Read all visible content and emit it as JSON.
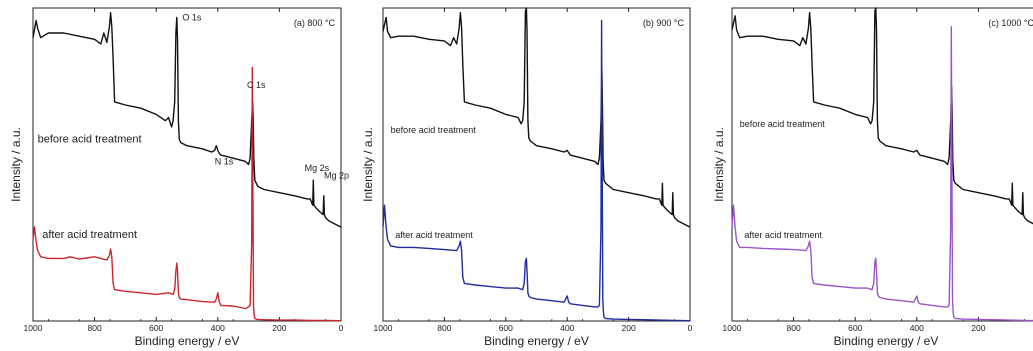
{
  "chart_data": [
    {
      "type": "line",
      "panel_label": "(a) 800 °C",
      "xlabel": "Binding energy / eV",
      "ylabel": "Intensity / a.u.",
      "xlim": [
        1000,
        0
      ],
      "x_reversed": true,
      "xticks": [
        1000,
        800,
        600,
        400,
        200,
        0
      ],
      "grid": false,
      "series": [
        {
          "name": "before acid treatment",
          "color": "#111111",
          "x": [
            1000,
            990,
            985,
            975,
            950,
            900,
            850,
            800,
            780,
            770,
            760,
            752,
            748,
            744,
            740,
            735,
            700,
            650,
            600,
            570,
            560,
            550,
            545,
            540,
            536,
            533,
            531,
            528,
            525,
            520,
            500,
            450,
            420,
            410,
            405,
            400,
            395,
            390,
            350,
            310,
            300,
            295,
            290,
            287,
            285,
            283,
            280,
            275,
            270,
            250,
            200,
            150,
            110,
            100,
            92,
            90,
            88,
            80,
            70,
            58,
            56,
            54,
            50,
            40,
            20,
            0
          ],
          "y": [
            0.905,
            0.96,
            0.935,
            0.905,
            0.92,
            0.92,
            0.91,
            0.9,
            0.885,
            0.92,
            0.89,
            0.94,
            0.985,
            0.94,
            0.84,
            0.7,
            0.69,
            0.68,
            0.66,
            0.64,
            0.65,
            0.62,
            0.64,
            0.7,
            0.92,
            0.97,
            0.9,
            0.64,
            0.58,
            0.57,
            0.56,
            0.55,
            0.54,
            0.545,
            0.56,
            0.545,
            0.535,
            0.53,
            0.52,
            0.51,
            0.5,
            0.52,
            0.64,
            0.7,
            0.65,
            0.52,
            0.45,
            0.44,
            0.43,
            0.42,
            0.41,
            0.4,
            0.39,
            0.39,
            0.37,
            0.45,
            0.37,
            0.36,
            0.35,
            0.34,
            0.4,
            0.34,
            0.33,
            0.32,
            0.31,
            0.3
          ]
        },
        {
          "name": "after acid treatment",
          "color": "#c8282d",
          "x": [
            1000,
            995,
            990,
            985,
            975,
            950,
            900,
            880,
            850,
            800,
            780,
            760,
            752,
            748,
            744,
            740,
            735,
            700,
            650,
            600,
            560,
            545,
            540,
            536,
            533,
            531,
            528,
            525,
            520,
            500,
            450,
            410,
            405,
            400,
            395,
            390,
            350,
            310,
            300,
            295,
            290,
            288,
            286,
            284,
            282,
            280,
            275,
            270,
            250,
            200,
            150,
            100,
            50,
            0
          ],
          "y": [
            0.26,
            0.3,
            0.255,
            0.225,
            0.205,
            0.2,
            0.2,
            0.205,
            0.198,
            0.205,
            0.2,
            0.195,
            0.21,
            0.23,
            0.205,
            0.12,
            0.1,
            0.095,
            0.09,
            0.085,
            0.09,
            0.085,
            0.1,
            0.16,
            0.185,
            0.16,
            0.09,
            0.075,
            0.07,
            0.068,
            0.062,
            0.06,
            0.07,
            0.09,
            0.06,
            0.05,
            0.048,
            0.04,
            0.045,
            0.05,
            0.25,
            0.81,
            0.42,
            0.05,
            0.02,
            0.008,
            0.006,
            0.005,
            0.004,
            0.003,
            0.003,
            0.002,
            0.002,
            0.001
          ]
        }
      ],
      "annotations": [
        {
          "text": "O 1s",
          "x": 515,
          "y": 0.96
        },
        {
          "text": "C 1s",
          "x": 305,
          "y": 0.745
        },
        {
          "text": "N 1s",
          "x": 410,
          "y": 0.5
        },
        {
          "text": "Mg 2s",
          "x": 118,
          "y": 0.48
        },
        {
          "text": "Mg 2p",
          "x": 55,
          "y": 0.455
        },
        {
          "text": "before acid treatment",
          "x": 985,
          "y": 0.57
        },
        {
          "text": "after acid treatment",
          "x": 970,
          "y": 0.265
        }
      ]
    },
    {
      "type": "line",
      "panel_label": "(b) 900 °C",
      "xlabel": "Binding energy / eV",
      "ylabel": "Intensity / a.u.",
      "xlim": [
        1000,
        0
      ],
      "x_reversed": true,
      "xticks": [
        1000,
        800,
        600,
        400,
        200,
        0
      ],
      "grid": false,
      "series": [
        {
          "name": "before acid treatment",
          "color": "#111111",
          "x": [
            1000,
            990,
            985,
            975,
            950,
            900,
            850,
            800,
            780,
            770,
            760,
            752,
            748,
            744,
            740,
            735,
            700,
            650,
            600,
            560,
            550,
            545,
            540,
            536,
            533,
            531,
            528,
            525,
            520,
            500,
            450,
            410,
            400,
            390,
            350,
            310,
            300,
            295,
            290,
            287,
            285,
            283,
            280,
            275,
            250,
            200,
            150,
            110,
            100,
            92,
            90,
            88,
            80,
            70,
            58,
            56,
            54,
            50,
            40,
            20,
            0
          ],
          "y": [
            0.925,
            0.97,
            0.925,
            0.905,
            0.91,
            0.91,
            0.9,
            0.895,
            0.88,
            0.905,
            0.885,
            0.935,
            0.985,
            0.935,
            0.82,
            0.7,
            0.69,
            0.68,
            0.66,
            0.65,
            0.63,
            0.64,
            0.7,
            0.99,
            1.0,
            0.93,
            0.64,
            0.585,
            0.575,
            0.56,
            0.55,
            0.54,
            0.545,
            0.53,
            0.52,
            0.51,
            0.5,
            0.52,
            0.64,
            0.8,
            0.68,
            0.51,
            0.45,
            0.44,
            0.42,
            0.41,
            0.4,
            0.39,
            0.39,
            0.37,
            0.44,
            0.37,
            0.36,
            0.35,
            0.34,
            0.41,
            0.34,
            0.33,
            0.32,
            0.31,
            0.3
          ]
        },
        {
          "name": "after acid treatment",
          "color": "#1f2d9e",
          "x": [
            1000,
            995,
            990,
            985,
            975,
            950,
            900,
            850,
            800,
            760,
            752,
            748,
            744,
            740,
            735,
            700,
            650,
            600,
            560,
            545,
            540,
            536,
            533,
            531,
            528,
            525,
            520,
            500,
            450,
            410,
            400,
            395,
            390,
            350,
            310,
            300,
            295,
            290,
            288,
            286,
            284,
            282,
            280,
            275,
            250,
            200,
            150,
            100,
            50,
            0
          ],
          "y": [
            0.3,
            0.37,
            0.3,
            0.26,
            0.24,
            0.235,
            0.235,
            0.232,
            0.228,
            0.225,
            0.24,
            0.255,
            0.225,
            0.14,
            0.12,
            0.115,
            0.11,
            0.105,
            0.105,
            0.1,
            0.12,
            0.19,
            0.2,
            0.16,
            0.09,
            0.08,
            0.075,
            0.07,
            0.065,
            0.06,
            0.08,
            0.06,
            0.055,
            0.05,
            0.045,
            0.045,
            0.05,
            0.3,
            0.96,
            0.5,
            0.07,
            0.03,
            0.012,
            0.008,
            0.006,
            0.005,
            0.004,
            0.003,
            0.002,
            0.001
          ]
        }
      ],
      "annotations": [
        {
          "text": "before acid treatment",
          "x": 975,
          "y": 0.6
        },
        {
          "text": "after acid treatment",
          "x": 960,
          "y": 0.265
        }
      ]
    },
    {
      "type": "line",
      "panel_label": "(c) 1000 °C",
      "xlabel": "Binding energy / eV",
      "ylabel": "Intensity / a.u.",
      "xlim": [
        1000,
        0
      ],
      "x_reversed": true,
      "xticks": [
        1000,
        800,
        600,
        400,
        200
      ],
      "grid": false,
      "series": [
        {
          "name": "before acid treatment",
          "color": "#111111",
          "x": [
            1000,
            990,
            985,
            975,
            950,
            900,
            850,
            800,
            780,
            770,
            760,
            752,
            748,
            744,
            740,
            735,
            700,
            650,
            600,
            560,
            550,
            545,
            540,
            536,
            533,
            531,
            528,
            525,
            520,
            500,
            450,
            410,
            400,
            390,
            350,
            310,
            300,
            295,
            290,
            287,
            285,
            283,
            280,
            275,
            250,
            200,
            150,
            110,
            100,
            92,
            90,
            88,
            80,
            70,
            58,
            56,
            54,
            50,
            40,
            20,
            0
          ],
          "y": [
            0.93,
            0.975,
            0.93,
            0.905,
            0.91,
            0.91,
            0.9,
            0.895,
            0.88,
            0.905,
            0.885,
            0.935,
            0.985,
            0.935,
            0.82,
            0.7,
            0.69,
            0.68,
            0.66,
            0.65,
            0.63,
            0.64,
            0.7,
            0.99,
            1.0,
            0.93,
            0.64,
            0.585,
            0.575,
            0.56,
            0.55,
            0.54,
            0.545,
            0.53,
            0.52,
            0.51,
            0.5,
            0.52,
            0.64,
            0.75,
            0.66,
            0.51,
            0.45,
            0.44,
            0.42,
            0.41,
            0.4,
            0.39,
            0.39,
            0.37,
            0.44,
            0.37,
            0.36,
            0.35,
            0.34,
            0.41,
            0.34,
            0.33,
            0.32,
            0.31,
            0.3
          ]
        },
        {
          "name": "after acid treatment",
          "color": "#9b55c9",
          "x": [
            1000,
            995,
            990,
            985,
            975,
            950,
            900,
            850,
            800,
            760,
            752,
            748,
            744,
            740,
            735,
            700,
            650,
            600,
            560,
            545,
            540,
            536,
            533,
            531,
            528,
            525,
            520,
            500,
            450,
            410,
            400,
            395,
            390,
            350,
            310,
            300,
            295,
            290,
            288,
            286,
            284,
            282,
            280,
            275,
            250,
            200,
            150,
            100,
            50,
            0
          ],
          "y": [
            0.3,
            0.37,
            0.3,
            0.255,
            0.235,
            0.235,
            0.232,
            0.23,
            0.228,
            0.225,
            0.24,
            0.255,
            0.225,
            0.14,
            0.12,
            0.115,
            0.11,
            0.105,
            0.105,
            0.1,
            0.12,
            0.19,
            0.2,
            0.16,
            0.09,
            0.08,
            0.075,
            0.07,
            0.065,
            0.06,
            0.08,
            0.06,
            0.055,
            0.05,
            0.045,
            0.045,
            0.05,
            0.3,
            0.94,
            0.5,
            0.07,
            0.03,
            0.012,
            0.008,
            0.006,
            0.005,
            0.004,
            0.003,
            0.002,
            0.001
          ]
        }
      ],
      "annotations": [
        {
          "text": "before acid treatment",
          "x": 975,
          "y": 0.62
        },
        {
          "text": "after acid treatment",
          "x": 960,
          "y": 0.265
        }
      ]
    }
  ]
}
